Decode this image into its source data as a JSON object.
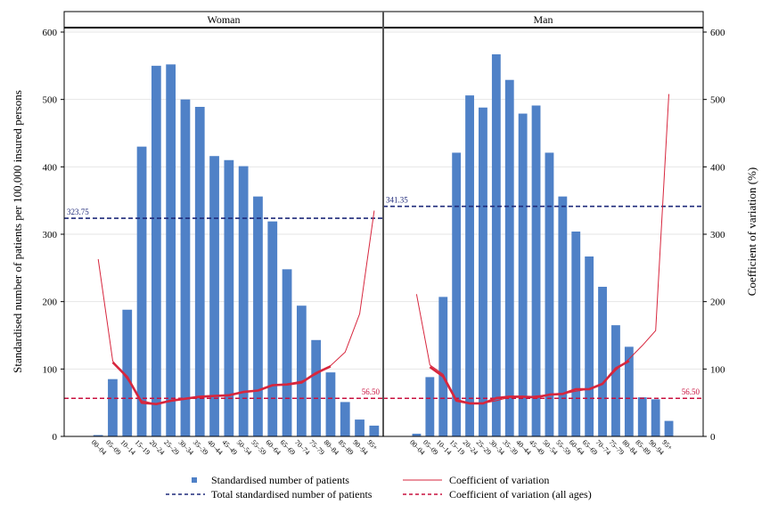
{
  "chart_data": {
    "type": "bar",
    "ylabel_left": "Standardised number of patients per 100,000 insured persons",
    "ylabel_right": "Coefficient of variation (%)",
    "ylim": [
      0,
      600
    ],
    "y_ticks": [
      0,
      100,
      200,
      300,
      400,
      500,
      600
    ],
    "categories": [
      "00–04",
      "05–09",
      "10–14",
      "15–19",
      "20–24",
      "25–29",
      "30–34",
      "35–39",
      "40–44",
      "45–49",
      "50–54",
      "55–59",
      "60–64",
      "65–69",
      "70–74",
      "75–79",
      "80–84",
      "85–89",
      "90–94",
      "95+"
    ],
    "panels": [
      {
        "name": "Woman",
        "bars": [
          2,
          85,
          188,
          430,
          550,
          552,
          500,
          489,
          416,
          410,
          401,
          356,
          319,
          248,
          194,
          143,
          95,
          51,
          25,
          16
        ],
        "cv_thin": [
          263,
          112,
          85,
          53,
          48,
          52,
          55,
          58,
          60,
          62,
          65,
          68,
          75,
          78,
          82,
          92,
          105,
          125,
          182,
          335
        ],
        "cv_thick": [
          null,
          110,
          88,
          50,
          48,
          53,
          56,
          59,
          60,
          61,
          66,
          68,
          76,
          77,
          80,
          94,
          104,
          null,
          null,
          null
        ],
        "total": 323.75,
        "total_label": "323.75",
        "cv_all": 56.5,
        "cv_all_label": "56.50"
      },
      {
        "name": "Man",
        "bars": [
          4,
          88,
          207,
          421,
          506,
          488,
          567,
          529,
          479,
          491,
          421,
          356,
          304,
          267,
          222,
          165,
          133,
          58,
          55,
          23
        ],
        "cv_thin": [
          211,
          106,
          92,
          55,
          50,
          49,
          53,
          58,
          58,
          60,
          62,
          63,
          67,
          70,
          78,
          98,
          115,
          135,
          157,
          508
        ],
        "cv_thick": [
          null,
          103,
          89,
          53,
          49,
          49,
          57,
          59,
          59,
          58,
          62,
          63,
          70,
          70,
          78,
          101,
          112,
          null,
          null,
          null
        ],
        "total": 341.35,
        "total_label": "341.35",
        "cv_all": 56.5,
        "cv_all_label": "56.50"
      }
    ],
    "legend": {
      "bars": "Standardised number of patients",
      "cv": "Coefficient of variation",
      "total": "Total standardised number of patients",
      "cv_all": "Coefficient of variation (all ages)"
    },
    "grid": true,
    "legend_position": "bottom",
    "colors": {
      "bar": "#4f81c7",
      "cv_line": "#d7263d",
      "total_line": "#1f2a7a",
      "cv_all_line": "#c8103e"
    }
  }
}
